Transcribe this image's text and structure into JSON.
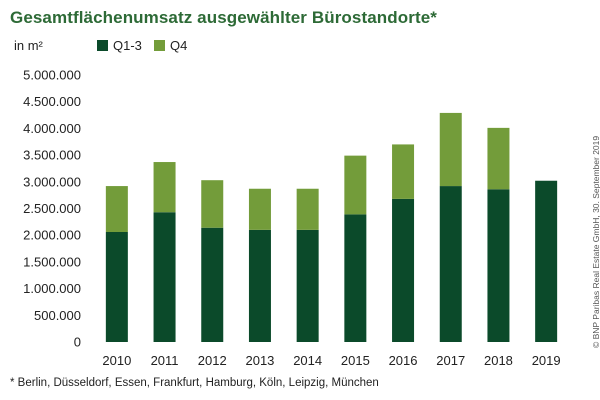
{
  "title": "Gesamtflächenumsatz ausgewählter Bürostandorte*",
  "footnote": "* Berlin, Düsseldorf, Essen, Frankfurt, Hamburg, Köln, Leipzig, München",
  "credit": "© BNP Paribas Real Estate GmbH, 30. September 2019",
  "colors": {
    "q13": "#0b4a2a",
    "q4": "#739c3a",
    "title": "#2d6a36"
  },
  "chart_data": {
    "type": "bar",
    "stacked": true,
    "ylabel": "in m²",
    "ylim": [
      0,
      5000000
    ],
    "yticks": [
      0,
      500000,
      1000000,
      1500000,
      2000000,
      2500000,
      3000000,
      3500000,
      4000000,
      4500000,
      5000000
    ],
    "ytick_labels": [
      "0",
      "500.000",
      "1.000.000",
      "1.500.000",
      "2.000.000",
      "2.500.000",
      "3.000.000",
      "3.500.000",
      "4.000.000",
      "4.500.000",
      "5.000.000"
    ],
    "categories": [
      "2010",
      "2011",
      "2012",
      "2013",
      "2014",
      "2015",
      "2016",
      "2017",
      "2018",
      "2019"
    ],
    "legend_position": "top-left",
    "grid": false,
    "series": [
      {
        "name": "Q1-3",
        "color": "#0b4a2a",
        "values": [
          2060000,
          2430000,
          2140000,
          2100000,
          2100000,
          2390000,
          2680000,
          2920000,
          2860000,
          3020000
        ]
      },
      {
        "name": "Q4",
        "color": "#739c3a",
        "values": [
          860000,
          940000,
          890000,
          770000,
          770000,
          1100000,
          1020000,
          1370000,
          1150000,
          0
        ]
      }
    ]
  }
}
